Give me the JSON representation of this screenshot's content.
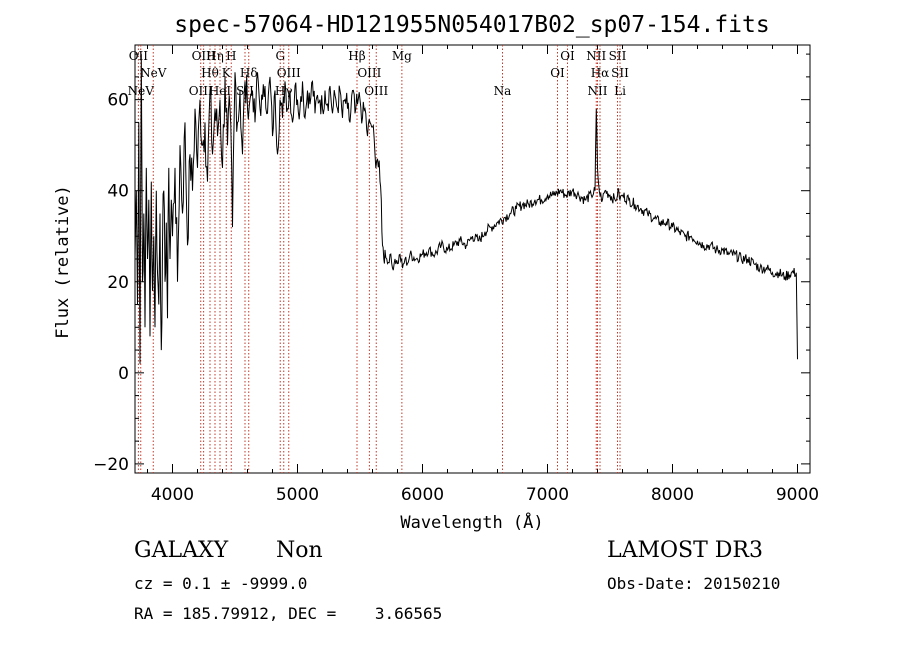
{
  "chart_data": {
    "type": "line",
    "title": "spec-57064-HD121955N054017B02_sp07-154.fits",
    "xlabel": "Wavelength (Å)",
    "ylabel": "Flux (relative)",
    "xlim": [
      3700,
      9100
    ],
    "ylim": [
      -22,
      72
    ],
    "xticks": [
      4000,
      5000,
      6000,
      7000,
      8000,
      9000
    ],
    "yticks": [
      -20,
      0,
      20,
      40,
      60
    ],
    "series": [
      {
        "name": "spectrum",
        "x": [
          3700,
          3710,
          3720,
          3730,
          3740,
          3750,
          3760,
          3770,
          3780,
          3790,
          3800,
          3810,
          3820,
          3830,
          3840,
          3850,
          3860,
          3870,
          3880,
          3890,
          3900,
          3910,
          3920,
          3930,
          3940,
          3950,
          3960,
          3970,
          3980,
          3990,
          4000,
          4020,
          4040,
          4060,
          4080,
          4100,
          4120,
          4140,
          4160,
          4180,
          4200,
          4220,
          4240,
          4260,
          4280,
          4300,
          4320,
          4340,
          4360,
          4380,
          4400,
          4420,
          4440,
          4460,
          4480,
          4500,
          4520,
          4540,
          4560,
          4580,
          4600,
          4620,
          4640,
          4660,
          4680,
          4700,
          4720,
          4740,
          4760,
          4780,
          4800,
          4820,
          4840,
          4860,
          4880,
          4900,
          4920,
          4940,
          4960,
          4980,
          5000,
          5020,
          5040,
          5060,
          5080,
          5100,
          5120,
          5140,
          5160,
          5180,
          5200,
          5220,
          5240,
          5260,
          5280,
          5300,
          5320,
          5340,
          5360,
          5380,
          5400,
          5420,
          5440,
          5460,
          5480,
          5500,
          5520,
          5540,
          5560,
          5580,
          5600,
          5620,
          5640,
          5660,
          5670,
          5680,
          5690,
          5700,
          5720,
          5740,
          5760,
          5780,
          5800,
          5820,
          5840,
          5860,
          5880,
          5900,
          5950,
          6000,
          6050,
          6100,
          6150,
          6200,
          6250,
          6300,
          6350,
          6400,
          6450,
          6500,
          6550,
          6600,
          6650,
          6700,
          6750,
          6800,
          6850,
          6900,
          6950,
          7000,
          7050,
          7100,
          7150,
          7200,
          7250,
          7300,
          7350,
          7380,
          7390,
          7400,
          7410,
          7420,
          7440,
          7460,
          7500,
          7540,
          7560,
          7570,
          7580,
          7600,
          7650,
          7700,
          7750,
          7800,
          7850,
          7900,
          7950,
          8000,
          8050,
          8100,
          8150,
          8200,
          8250,
          8300,
          8350,
          8400,
          8450,
          8500,
          8550,
          8600,
          8650,
          8700,
          8750,
          8800,
          8850,
          8900,
          8950,
          8990,
          9000
        ],
        "y": [
          25,
          40,
          15,
          55,
          2,
          70,
          20,
          35,
          10,
          45,
          25,
          38,
          8,
          42,
          18,
          30,
          10,
          40,
          22,
          15,
          35,
          5,
          28,
          40,
          20,
          33,
          12,
          45,
          25,
          38,
          30,
          45,
          20,
          50,
          35,
          55,
          28,
          48,
          40,
          58,
          45,
          60,
          50,
          55,
          42,
          62,
          48,
          58,
          52,
          60,
          45,
          65,
          50,
          58,
          32,
          66,
          55,
          62,
          48,
          64,
          58,
          60,
          62,
          55,
          66,
          58,
          60,
          63,
          57,
          65,
          52,
          62,
          48,
          60,
          56,
          64,
          58,
          62,
          55,
          63,
          60,
          58,
          64,
          56,
          62,
          59,
          64,
          57,
          61,
          60,
          58,
          62,
          59,
          63,
          57,
          61,
          58,
          62,
          56,
          60,
          58,
          55,
          62,
          57,
          59,
          60,
          56,
          58,
          52,
          55,
          54,
          48,
          47,
          42,
          38,
          28,
          25,
          27,
          24,
          26,
          23,
          25,
          24,
          26,
          23,
          25,
          24,
          26,
          25,
          26,
          27,
          26,
          28,
          27,
          28,
          29,
          28,
          30,
          29,
          31,
          32,
          33,
          34,
          35,
          36,
          37,
          37,
          38,
          38,
          39,
          39,
          40,
          39,
          40,
          39,
          38,
          39,
          40,
          58,
          45,
          41,
          39,
          38,
          40,
          39,
          38,
          39,
          40,
          38,
          39,
          38,
          37,
          36,
          35,
          34,
          33,
          33,
          32,
          31,
          30,
          30,
          29,
          28,
          28,
          27,
          27,
          26,
          26,
          25,
          25,
          24,
          23,
          23,
          22,
          22,
          21,
          22,
          22,
          3
        ]
      }
    ],
    "line_markers": [
      {
        "name": "NeV",
        "x": 3746,
        "row": 2
      },
      {
        "name": "NeV",
        "x": 3846,
        "row": 1
      },
      {
        "name": "OII",
        "x": 3727,
        "row": 0
      },
      {
        "name": "OIII",
        "x": 4226,
        "row": 2
      },
      {
        "name": "OIII",
        "x": 4249,
        "row": 0
      },
      {
        "name": "Hθ",
        "x": 4300,
        "row": 1
      },
      {
        "name": "Hη",
        "x": 4340,
        "row": 0
      },
      {
        "name": "HeI",
        "x": 4380,
        "row": 2
      },
      {
        "name": "K",
        "x": 4430,
        "row": 1
      },
      {
        "name": "H",
        "x": 4470,
        "row": 0
      },
      {
        "name": "SII",
        "x": 4580,
        "row": 2
      },
      {
        "name": "Hδ",
        "x": 4610,
        "row": 1
      },
      {
        "name": "G",
        "x": 4862,
        "row": 0
      },
      {
        "name": "OIII",
        "x": 4930,
        "row": 1
      },
      {
        "name": "Hγ",
        "x": 4890,
        "row": 2
      },
      {
        "name": "Hβ",
        "x": 5476,
        "row": 0
      },
      {
        "name": "OIII",
        "x": 5575,
        "row": 1
      },
      {
        "name": "OIII",
        "x": 5630,
        "row": 2
      },
      {
        "name": "Mg",
        "x": 5835,
        "row": 0
      },
      {
        "name": "Na",
        "x": 6640,
        "row": 2
      },
      {
        "name": "OI",
        "x": 7160,
        "row": 0
      },
      {
        "name": "OI",
        "x": 7080,
        "row": 1
      },
      {
        "name": "NII",
        "x": 7390,
        "row": 0
      },
      {
        "name": "Hα",
        "x": 7420,
        "row": 1
      },
      {
        "name": "NII",
        "x": 7400,
        "row": 2
      },
      {
        "name": "SII",
        "x": 7560,
        "row": 0
      },
      {
        "name": "SII",
        "x": 7580,
        "row": 1
      },
      {
        "name": "Li",
        "x": 7580,
        "row": 2
      }
    ]
  },
  "info": {
    "class": "GALAXY",
    "subclass": "Non",
    "survey": "LAMOST DR3",
    "cz_line": "cz = 0.1 ± -9999.0",
    "obs_date": "Obs-Date: 20150210",
    "radec_line": "RA = 185.79912, DEC =    3.66565"
  }
}
